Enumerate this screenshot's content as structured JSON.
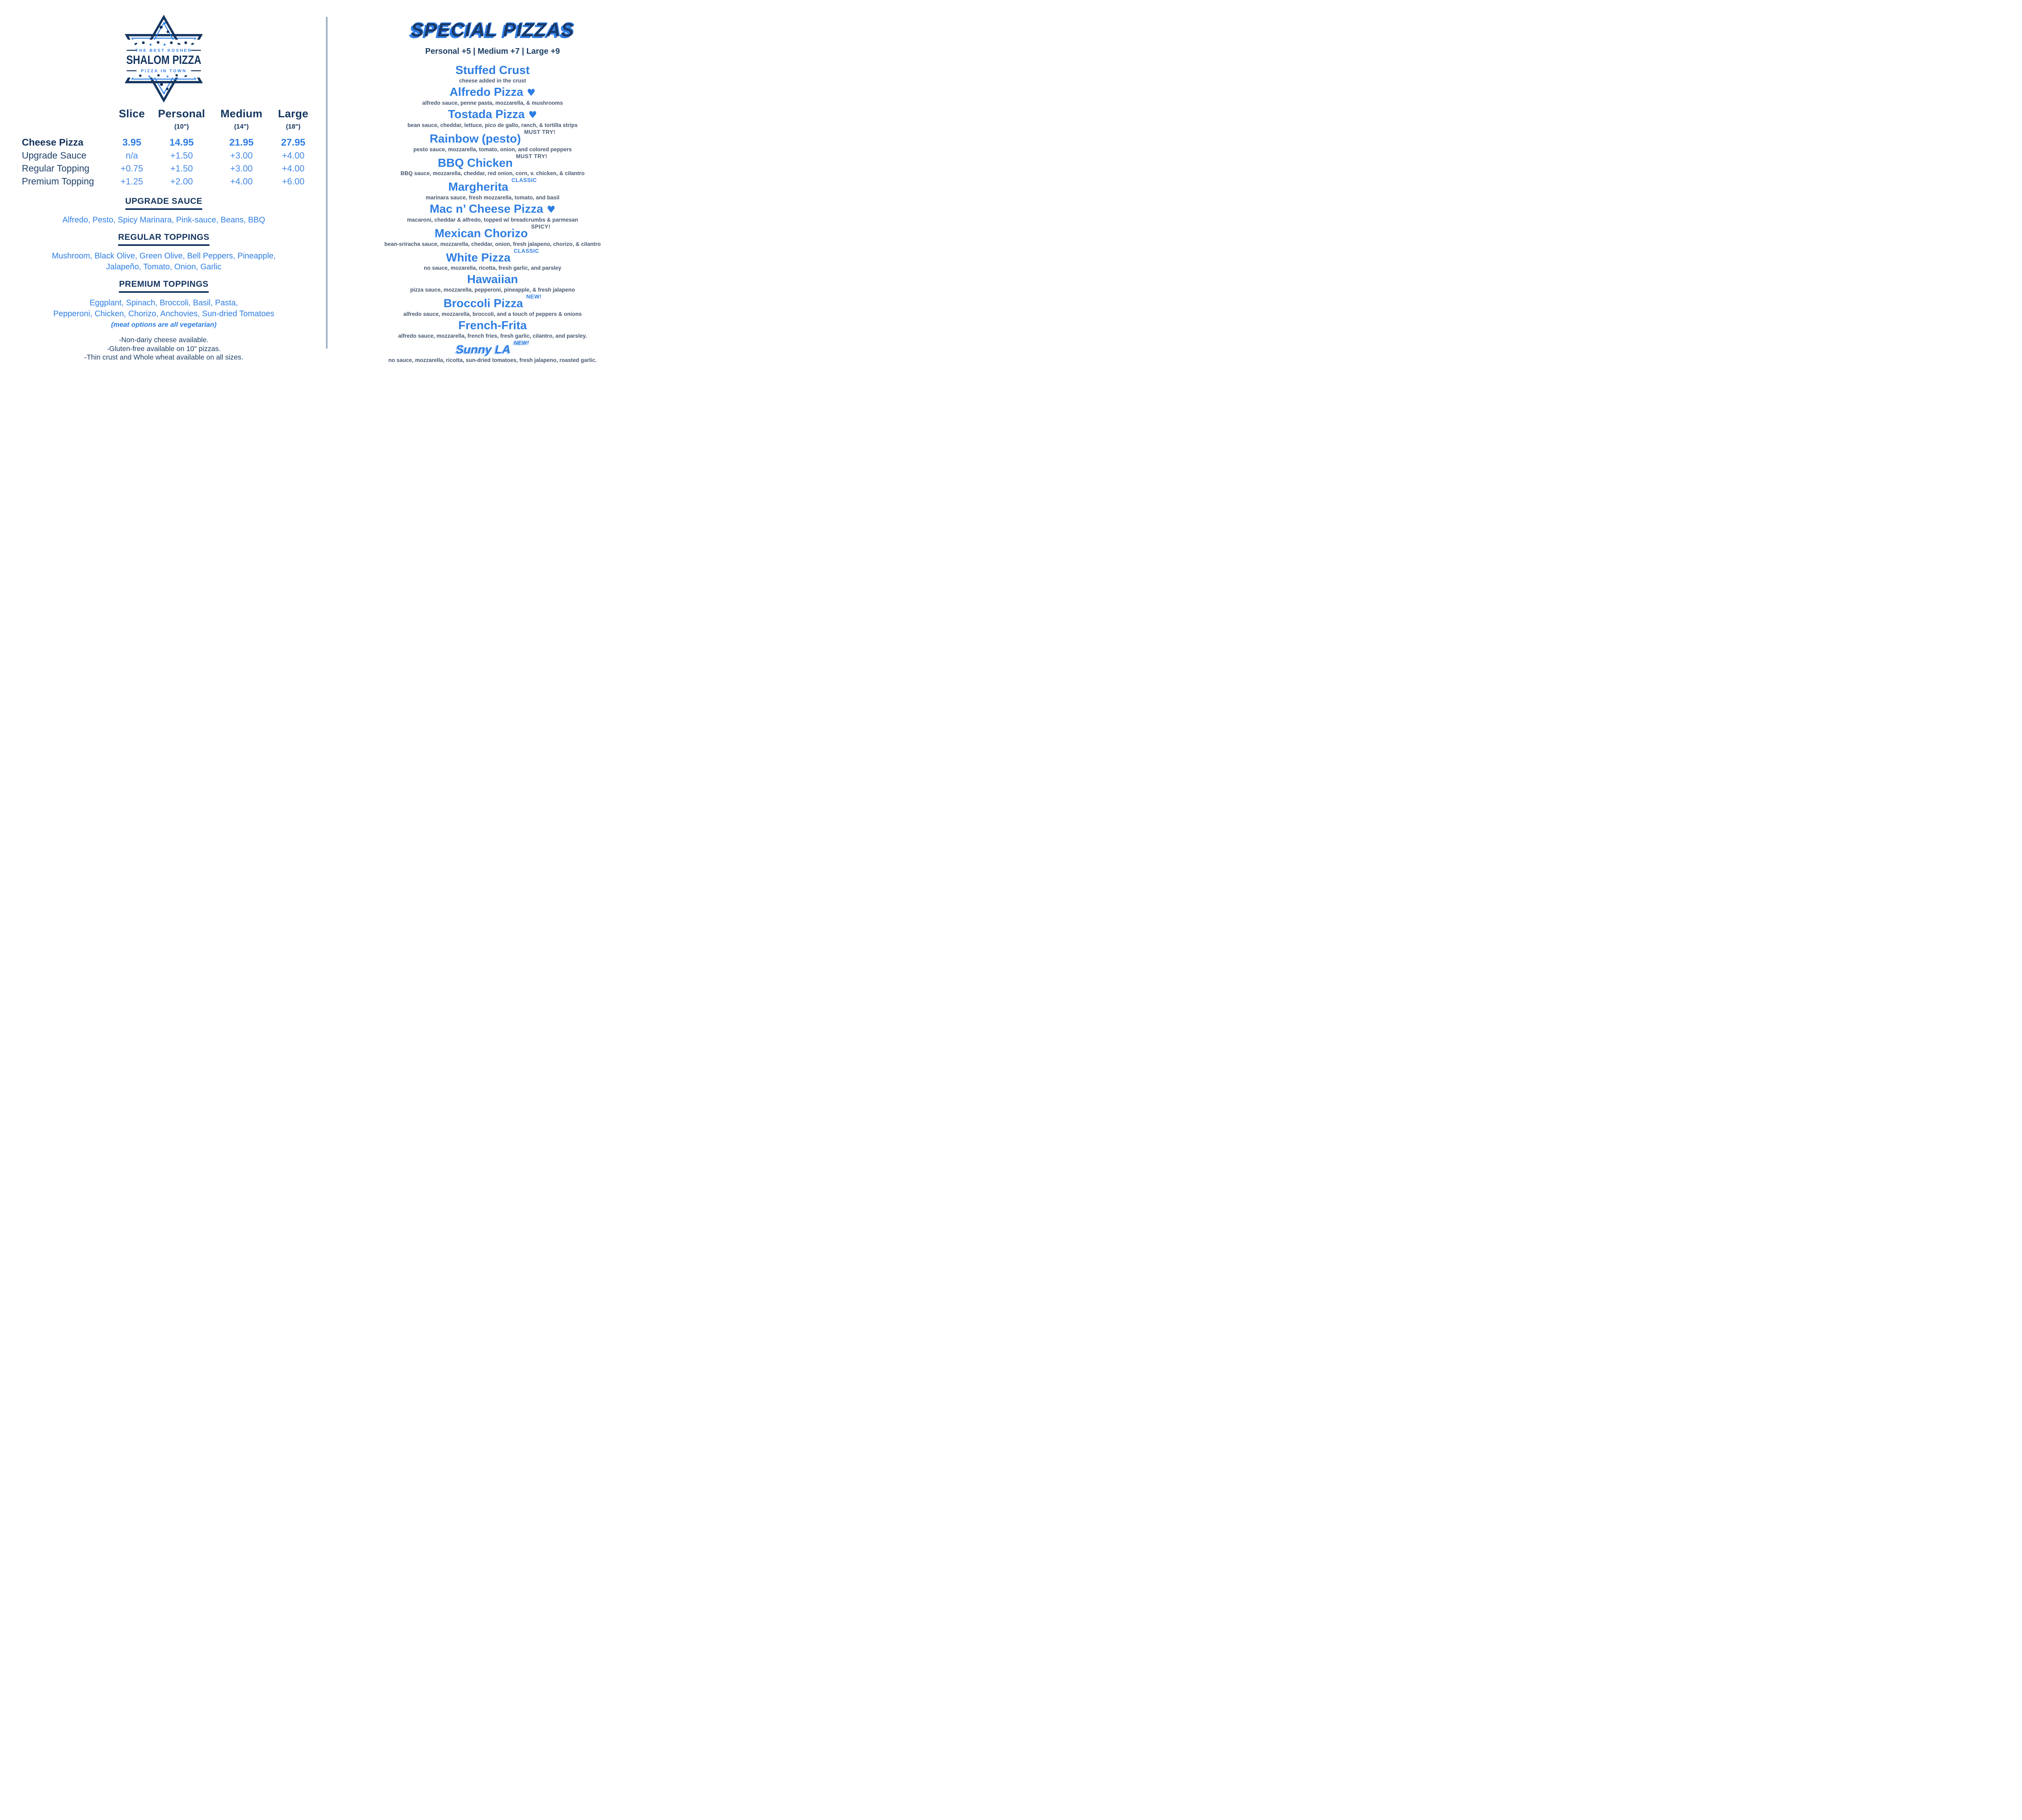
{
  "brand": {
    "tagline_top": "THE BEST KOSHER",
    "name": "SHALOM PIZZA",
    "tagline_bottom": "PIZZA IN TOWN"
  },
  "price_table": {
    "columns": [
      "Slice",
      "Personal",
      "Medium",
      "Large"
    ],
    "sizes": [
      "",
      "(10\")",
      "(14\")",
      "(18\")"
    ],
    "rows": [
      {
        "label": "Cheese Pizza",
        "values": [
          "3.95",
          "14.95",
          "21.95",
          "27.95"
        ],
        "emphasis": true
      },
      {
        "label": "Upgrade Sauce",
        "values": [
          "n/a",
          "+1.50",
          "+3.00",
          "+4.00"
        ]
      },
      {
        "label": "Regular Topping",
        "values": [
          "+0.75",
          "+1.50",
          "+3.00",
          "+4.00"
        ]
      },
      {
        "label": "Premium Topping",
        "values": [
          "+1.25",
          "+2.00",
          "+4.00",
          "+6.00"
        ]
      }
    ]
  },
  "sections": [
    {
      "heading": "UPGRADE SAUCE",
      "lines": [
        "Alfredo, Pesto, Spicy Marinara, Pink-sauce, Beans, BBQ"
      ]
    },
    {
      "heading": "REGULAR TOPPINGS",
      "lines": [
        "Mushroom, Black Olive, Green Olive, Bell Peppers, Pineapple,",
        "Jalapeño, Tomato, Onion, Garlic"
      ]
    },
    {
      "heading": "PREMIUM TOPPINGS",
      "lines": [
        "Eggplant, Spinach, Broccoli, Basil, Pasta,",
        "Pepperoni, Chicken, Chorizo, Anchovies, Sun-dried Tomatoes"
      ],
      "note": "(meat options are all vegetarian)"
    }
  ],
  "footnotes": [
    "-Non-dariy cheese available.",
    "-Gluten-free available on 10\" pizzas.",
    "-Thin crust and Whole wheat available on all sizes."
  ],
  "specials": {
    "title": "SPECIAL PIZZAS",
    "pricing": "Personal +5 | Medium +7 | Large +9",
    "items": [
      {
        "name": "Stuffed Crust",
        "desc": "cheese added in the crust"
      },
      {
        "name": "Alfredo Pizza",
        "heart": true,
        "desc": "alfredo sauce, penne pasta, mozzarella, & mushrooms"
      },
      {
        "name": "Tostada Pizza",
        "heart": true,
        "desc": "bean sauce, cheddar, lettuce, pico de gallo, ranch, & tortilla strips"
      },
      {
        "name": "Rainbow (pesto)",
        "badge": "MUST TRY!",
        "badge_style": "muted",
        "desc": "pesto sauce, mozzarella, tomato, onion, and colored peppers"
      },
      {
        "name": "BBQ Chicken",
        "badge": "MUST TRY!",
        "badge_style": "muted",
        "desc": "BBQ sauce, mozzarella, cheddar, red onion, corn, v. chicken, & cilantro"
      },
      {
        "name": "Margherita",
        "badge": "CLASSIC",
        "badge_style": "accent",
        "desc": "marinara sauce, fresh mozzarella, tomato, and basil"
      },
      {
        "name": "Mac n’ Cheese Pizza",
        "heart": true,
        "desc": "macaroni, cheddar & alfredo, topped w/ breadcrumbs & parmesan"
      },
      {
        "name": "Mexican Chorizo",
        "badge": "SPICY!",
        "badge_style": "muted",
        "desc": "bean-sriracha sauce, mozzarella, cheddar, onion, fresh jalapeno, chorizo, & cilantro"
      },
      {
        "name": "White Pizza",
        "badge": "CLASSIC",
        "badge_style": "accent",
        "desc": "no sauce, mozarella, ricotta, fresh garlic, and parsley"
      },
      {
        "name": "Hawaiian",
        "desc": "pizza sauce, mozzarella, pepperoni, pineapple, & fresh jalapeno"
      },
      {
        "name": "Broccoli Pizza",
        "badge": "NEW!",
        "badge_style": "accent",
        "desc": "alfredo sauce, mozzarella, broccoli, and a touch of peppers & onions"
      },
      {
        "name": "French-Frita",
        "desc": "alfredo sauce, mozzarella, french fries, fresh garlic, cilantro, and parsley."
      },
      {
        "name": "Sunny LA",
        "badge": "NEW!",
        "badge_style": "accent",
        "italic": true,
        "desc": "no sauce, mozzarella, ricotta, sun-dried tomatoes, fresh jalapeno, roasted garlic."
      }
    ]
  },
  "icons": {
    "heart": "♥"
  },
  "colors": {
    "navy": "#14355f",
    "accent_blue": "#2e7ee2",
    "light_blue": "#4287e6",
    "desc_gray": "#4a5a72",
    "divider": "#9fb0c5"
  }
}
